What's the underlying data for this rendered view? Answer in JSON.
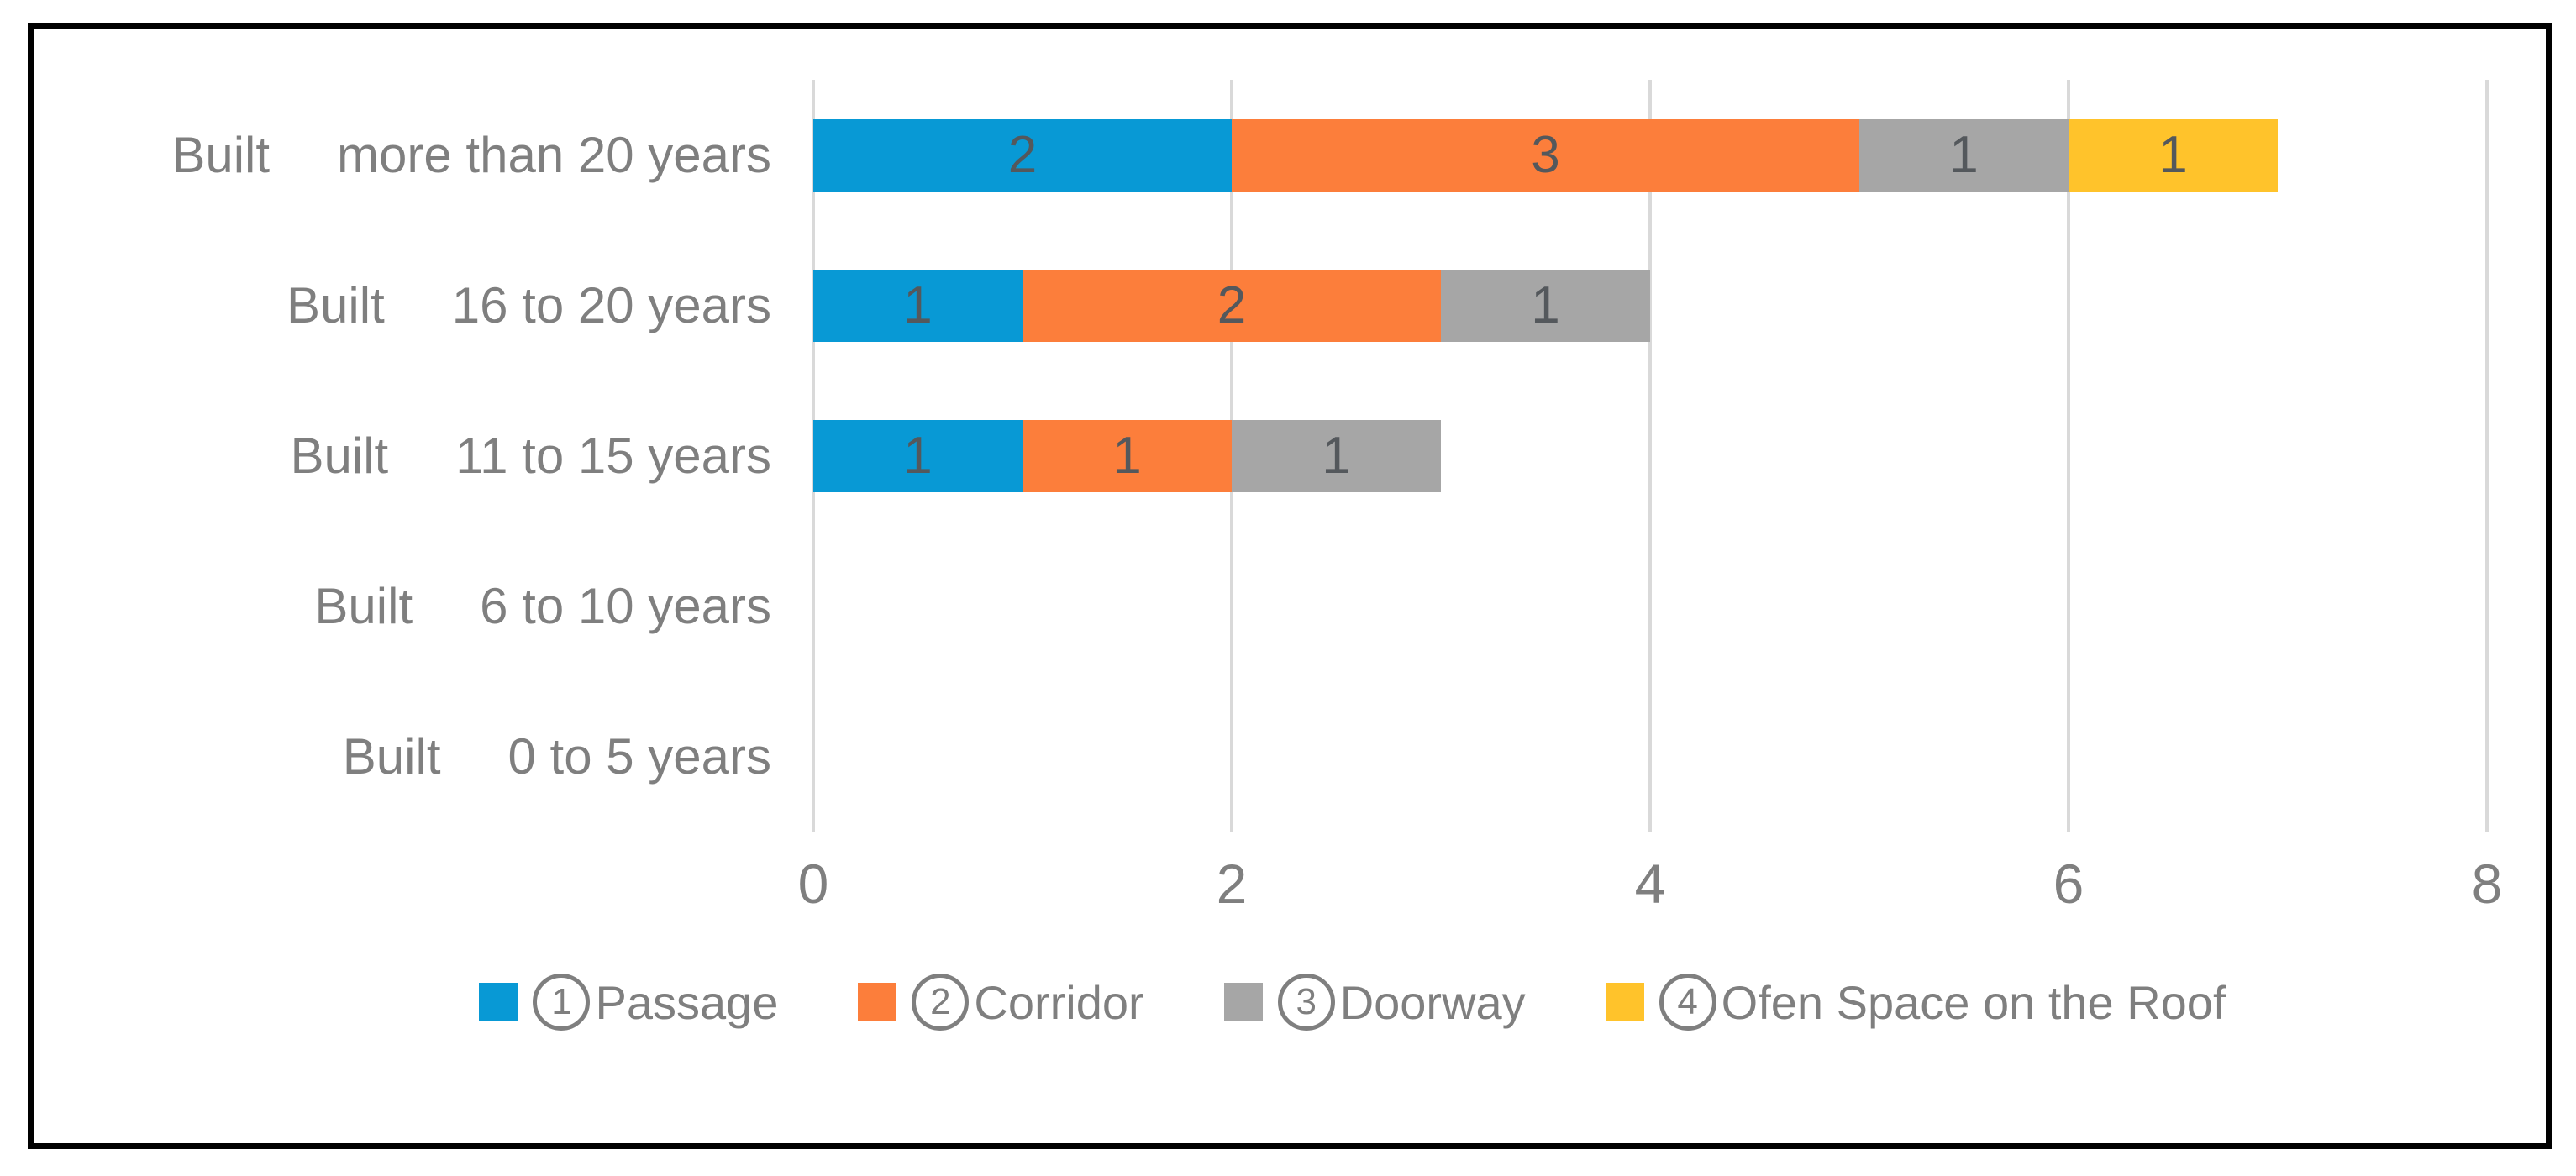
{
  "colors": {
    "background": "#FFFFFF",
    "frame_border": "#000000",
    "grid": "#D9D9D9",
    "axis_text": "#7F7F7F",
    "data_label": "#54585C"
  },
  "chart_data": {
    "type": "bar",
    "orientation": "horizontal",
    "stacked": true,
    "title": "",
    "xlabel": "",
    "ylabel": "",
    "xlim": [
      0,
      8
    ],
    "x_ticks": [
      "0",
      "2",
      "4",
      "6",
      "8"
    ],
    "grid": true,
    "legend_position": "bottom",
    "show_data_labels": true,
    "categories": [
      {
        "prefix": "Built",
        "range": "more than 20 years"
      },
      {
        "prefix": "Built",
        "range": "16 to 20 years"
      },
      {
        "prefix": "Built",
        "range": "11 to 15 years"
      },
      {
        "prefix": "Built",
        "range": "6 to 10 years"
      },
      {
        "prefix": "Built",
        "range": "0 to 5 years"
      }
    ],
    "series": [
      {
        "name": "Passage",
        "legend_number": "1",
        "color": "#0899D5",
        "values": [
          2,
          1,
          1,
          0,
          0
        ]
      },
      {
        "name": "Corridor",
        "legend_number": "2",
        "color": "#FC7E3B",
        "values": [
          3,
          2,
          1,
          0,
          0
        ]
      },
      {
        "name": "Doorway",
        "legend_number": "3",
        "color": "#A6A6A6",
        "values": [
          1,
          1,
          1,
          0,
          0
        ]
      },
      {
        "name": "Ofen Space on the Roof",
        "legend_number": "4",
        "color": "#FFC32B",
        "values": [
          1,
          0,
          0,
          0,
          0
        ]
      }
    ]
  }
}
